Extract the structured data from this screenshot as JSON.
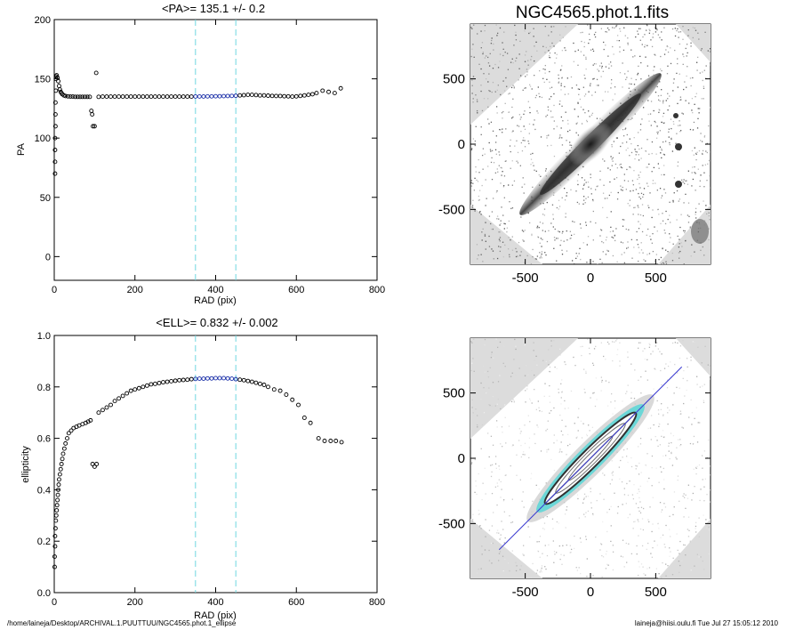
{
  "footer": {
    "path": "/home/laineja/Desktop/ARCHIVAL.1.PUUTTUU/NGC4565.phot.1_ellipse",
    "stamp": "laineja@hiisi.oulu.fi  Tue Jul 27 15:05:12 2010"
  },
  "chart_data": [
    {
      "type": "scatter",
      "title": "<PA>= 135.1 +/-   0.2",
      "xlabel": "RAD (pix)",
      "ylabel": "PA",
      "xlim": [
        0,
        800
      ],
      "ylim": [
        -20,
        200
      ],
      "xticks": [
        "0",
        "200",
        "400",
        "600",
        "800"
      ],
      "yticks": [
        "0",
        "50",
        "100",
        "150",
        "200"
      ],
      "ytick_values": [
        0,
        50,
        100,
        150,
        200
      ],
      "xtick_values": [
        0,
        200,
        400,
        600,
        800
      ],
      "vlines": [
        350,
        450
      ],
      "highlight_range": [
        350,
        450
      ],
      "colors": {
        "points": "#000000",
        "highlight": "#1a2fa8",
        "vline": "#6fd8e0"
      },
      "points": [
        [
          2,
          70
        ],
        [
          2,
          80
        ],
        [
          2,
          90
        ],
        [
          2,
          100
        ],
        [
          3,
          110
        ],
        [
          3,
          120
        ],
        [
          3,
          130
        ],
        [
          4,
          140
        ],
        [
          4,
          150
        ],
        [
          5,
          152
        ],
        [
          6,
          153
        ],
        [
          8,
          151
        ],
        [
          10,
          148
        ],
        [
          12,
          144
        ],
        [
          14,
          141
        ],
        [
          16,
          139
        ],
        [
          18,
          138
        ],
        [
          20,
          137
        ],
        [
          24,
          136
        ],
        [
          28,
          135.5
        ],
        [
          34,
          135.2
        ],
        [
          40,
          135
        ],
        [
          46,
          135
        ],
        [
          52,
          134.8
        ],
        [
          58,
          134.8
        ],
        [
          64,
          134.8
        ],
        [
          70,
          134.8
        ],
        [
          76,
          134.8
        ],
        [
          82,
          134.8
        ],
        [
          88,
          134.8
        ],
        [
          92,
          123
        ],
        [
          94,
          120
        ],
        [
          96,
          110
        ],
        [
          100,
          110
        ],
        [
          104,
          155
        ],
        [
          110,
          134.8
        ],
        [
          120,
          135
        ],
        [
          130,
          135
        ],
        [
          140,
          135
        ],
        [
          150,
          135
        ],
        [
          160,
          135
        ],
        [
          170,
          135
        ],
        [
          180,
          135
        ],
        [
          190,
          135
        ],
        [
          200,
          135
        ],
        [
          210,
          135
        ],
        [
          220,
          135
        ],
        [
          230,
          135
        ],
        [
          240,
          135
        ],
        [
          250,
          135
        ],
        [
          260,
          135
        ],
        [
          270,
          135
        ],
        [
          280,
          135
        ],
        [
          290,
          135
        ],
        [
          300,
          135
        ],
        [
          310,
          135
        ],
        [
          320,
          135
        ],
        [
          330,
          135
        ],
        [
          340,
          135
        ],
        [
          350,
          135.1
        ],
        [
          360,
          135.1
        ],
        [
          370,
          135.1
        ],
        [
          380,
          135.2
        ],
        [
          390,
          135.2
        ],
        [
          400,
          135.3
        ],
        [
          410,
          135.3
        ],
        [
          420,
          135.4
        ],
        [
          430,
          135.5
        ],
        [
          440,
          135.6
        ],
        [
          450,
          135.7
        ],
        [
          460,
          136
        ],
        [
          470,
          136.2
        ],
        [
          480,
          136.5
        ],
        [
          490,
          136.5
        ],
        [
          500,
          136.3
        ],
        [
          510,
          136
        ],
        [
          520,
          136
        ],
        [
          530,
          135.8
        ],
        [
          540,
          135.6
        ],
        [
          550,
          135.5
        ],
        [
          560,
          135.5
        ],
        [
          570,
          135.3
        ],
        [
          580,
          135.2
        ],
        [
          590,
          135
        ],
        [
          600,
          135.2
        ],
        [
          610,
          135.6
        ],
        [
          620,
          136
        ],
        [
          630,
          136.5
        ],
        [
          640,
          137
        ],
        [
          650,
          138
        ],
        [
          665,
          140
        ],
        [
          680,
          139
        ],
        [
          695,
          138
        ],
        [
          710,
          142
        ]
      ]
    },
    {
      "type": "scatter",
      "title": "<ELL>= 0.832 +/-  0.002",
      "xlabel": "RAD (pix)",
      "ylabel": "ellipticity",
      "xlim": [
        0,
        800
      ],
      "ylim": [
        0,
        1
      ],
      "xticks": [
        "0",
        "200",
        "400",
        "600",
        "800"
      ],
      "yticks": [
        "0.0",
        "0.2",
        "0.4",
        "0.6",
        "0.8",
        "1.0"
      ],
      "ytick_values": [
        0,
        0.2,
        0.4,
        0.6,
        0.8,
        1.0
      ],
      "xtick_values": [
        0,
        200,
        400,
        600,
        800
      ],
      "vlines": [
        350,
        450
      ],
      "highlight_range": [
        350,
        450
      ],
      "colors": {
        "points": "#000000",
        "highlight": "#1a2fa8",
        "vline": "#6fd8e0"
      },
      "points": [
        [
          1,
          0.1
        ],
        [
          1,
          0.14
        ],
        [
          2,
          0.18
        ],
        [
          2,
          0.22
        ],
        [
          3,
          0.25
        ],
        [
          4,
          0.28
        ],
        [
          5,
          0.3
        ],
        [
          6,
          0.32
        ],
        [
          7,
          0.34
        ],
        [
          8,
          0.36
        ],
        [
          9,
          0.38
        ],
        [
          10,
          0.4
        ],
        [
          11,
          0.42
        ],
        [
          12,
          0.44
        ],
        [
          14,
          0.46
        ],
        [
          16,
          0.48
        ],
        [
          18,
          0.5
        ],
        [
          20,
          0.52
        ],
        [
          22,
          0.54
        ],
        [
          25,
          0.56
        ],
        [
          28,
          0.58
        ],
        [
          32,
          0.6
        ],
        [
          36,
          0.62
        ],
        [
          42,
          0.63
        ],
        [
          48,
          0.64
        ],
        [
          55,
          0.645
        ],
        [
          62,
          0.65
        ],
        [
          70,
          0.655
        ],
        [
          78,
          0.66
        ],
        [
          84,
          0.665
        ],
        [
          90,
          0.67
        ],
        [
          95,
          0.5
        ],
        [
          100,
          0.49
        ],
        [
          105,
          0.5
        ],
        [
          110,
          0.7
        ],
        [
          120,
          0.71
        ],
        [
          130,
          0.72
        ],
        [
          140,
          0.73
        ],
        [
          150,
          0.745
        ],
        [
          160,
          0.755
        ],
        [
          170,
          0.765
        ],
        [
          180,
          0.775
        ],
        [
          190,
          0.785
        ],
        [
          200,
          0.79
        ],
        [
          210,
          0.795
        ],
        [
          220,
          0.8
        ],
        [
          230,
          0.805
        ],
        [
          240,
          0.81
        ],
        [
          250,
          0.812
        ],
        [
          260,
          0.815
        ],
        [
          270,
          0.818
        ],
        [
          280,
          0.82
        ],
        [
          290,
          0.822
        ],
        [
          300,
          0.824
        ],
        [
          310,
          0.826
        ],
        [
          320,
          0.827
        ],
        [
          330,
          0.828
        ],
        [
          340,
          0.83
        ],
        [
          350,
          0.831
        ],
        [
          360,
          0.832
        ],
        [
          370,
          0.832
        ],
        [
          380,
          0.833
        ],
        [
          390,
          0.833
        ],
        [
          400,
          0.834
        ],
        [
          410,
          0.834
        ],
        [
          420,
          0.834
        ],
        [
          430,
          0.833
        ],
        [
          440,
          0.832
        ],
        [
          450,
          0.83
        ],
        [
          460,
          0.828
        ],
        [
          470,
          0.826
        ],
        [
          480,
          0.823
        ],
        [
          490,
          0.82
        ],
        [
          500,
          0.816
        ],
        [
          510,
          0.812
        ],
        [
          520,
          0.808
        ],
        [
          530,
          0.8
        ],
        [
          545,
          0.79
        ],
        [
          560,
          0.785
        ],
        [
          575,
          0.77
        ],
        [
          590,
          0.75
        ],
        [
          605,
          0.73
        ],
        [
          620,
          0.68
        ],
        [
          635,
          0.66
        ],
        [
          655,
          0.6
        ],
        [
          670,
          0.59
        ],
        [
          685,
          0.59
        ],
        [
          698,
          0.59
        ],
        [
          712,
          0.585
        ]
      ]
    },
    {
      "type": "image",
      "title": "NGC4565.phot.1.fits",
      "xticks": [
        "-500",
        "0",
        "500"
      ],
      "yticks": [
        "500",
        "0",
        "-500"
      ],
      "xtick_values": [
        -500,
        0,
        500
      ],
      "ytick_values": [
        500,
        0,
        -500
      ],
      "xlim": [
        -920,
        920
      ],
      "ylim": [
        -920,
        920
      ],
      "position_angle_deg": 135.1
    },
    {
      "type": "image",
      "title": "",
      "xticks": [
        "-500",
        "0",
        "500"
      ],
      "yticks": [
        "500",
        "0",
        "-500"
      ],
      "xtick_values": [
        -500,
        0,
        500
      ],
      "ytick_values": [
        500,
        0,
        -500
      ],
      "xlim": [
        -920,
        920
      ],
      "ylim": [
        -920,
        920
      ],
      "overlay_line": [
        [
          -700,
          -700
        ],
        [
          700,
          700
        ]
      ],
      "overlay_color": "#3a3ad0",
      "contour_color": "#5fd6d6"
    }
  ]
}
